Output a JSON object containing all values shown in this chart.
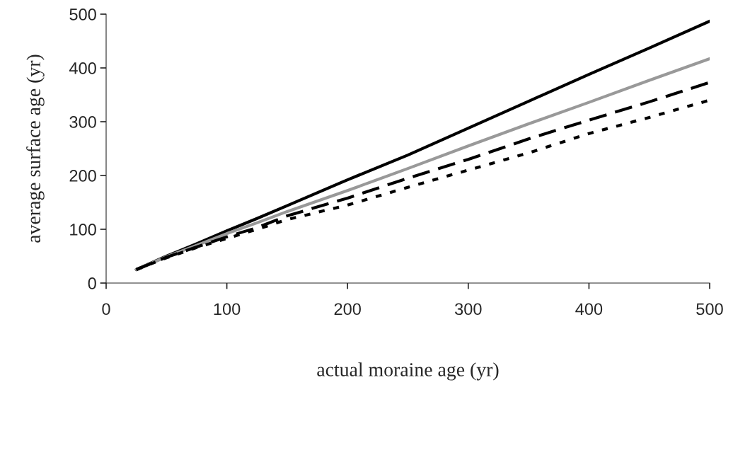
{
  "chart_data": {
    "type": "line",
    "xlabel": "actual moraine age (yr)",
    "ylabel": "average surface age (yr)",
    "x": [
      25,
      50,
      75,
      100,
      125,
      150,
      200,
      250,
      300,
      350,
      400,
      450,
      500
    ],
    "series": [
      {
        "color": "#000000",
        "line_style": "solid",
        "values": [
          25,
          50,
          73,
          97,
          120,
          144,
          192,
          238,
          288,
          338,
          388,
          437,
          487
        ]
      },
      {
        "color": "#999999",
        "line_style": "solid",
        "values": [
          25,
          49,
          70,
          92,
          112,
          133,
          172,
          213,
          255,
          296,
          336,
          377,
          417
        ]
      },
      {
        "color": "#000000",
        "line_style": "dashed",
        "values": [
          25,
          48,
          67,
          86,
          103,
          125,
          158,
          195,
          230,
          268,
          303,
          337,
          373
        ]
      },
      {
        "color": "#000000",
        "line_style": "dotted",
        "values": [
          25,
          47,
          66,
          83,
          100,
          118,
          145,
          178,
          210,
          242,
          278,
          308,
          340
        ]
      }
    ],
    "xlim": [
      0,
      500
    ],
    "ylim": [
      0,
      500
    ],
    "xticks": [
      0,
      100,
      200,
      300,
      400,
      500
    ],
    "yticks": [
      0,
      100,
      200,
      300,
      400,
      500
    ],
    "grid": false,
    "marker": "none"
  }
}
